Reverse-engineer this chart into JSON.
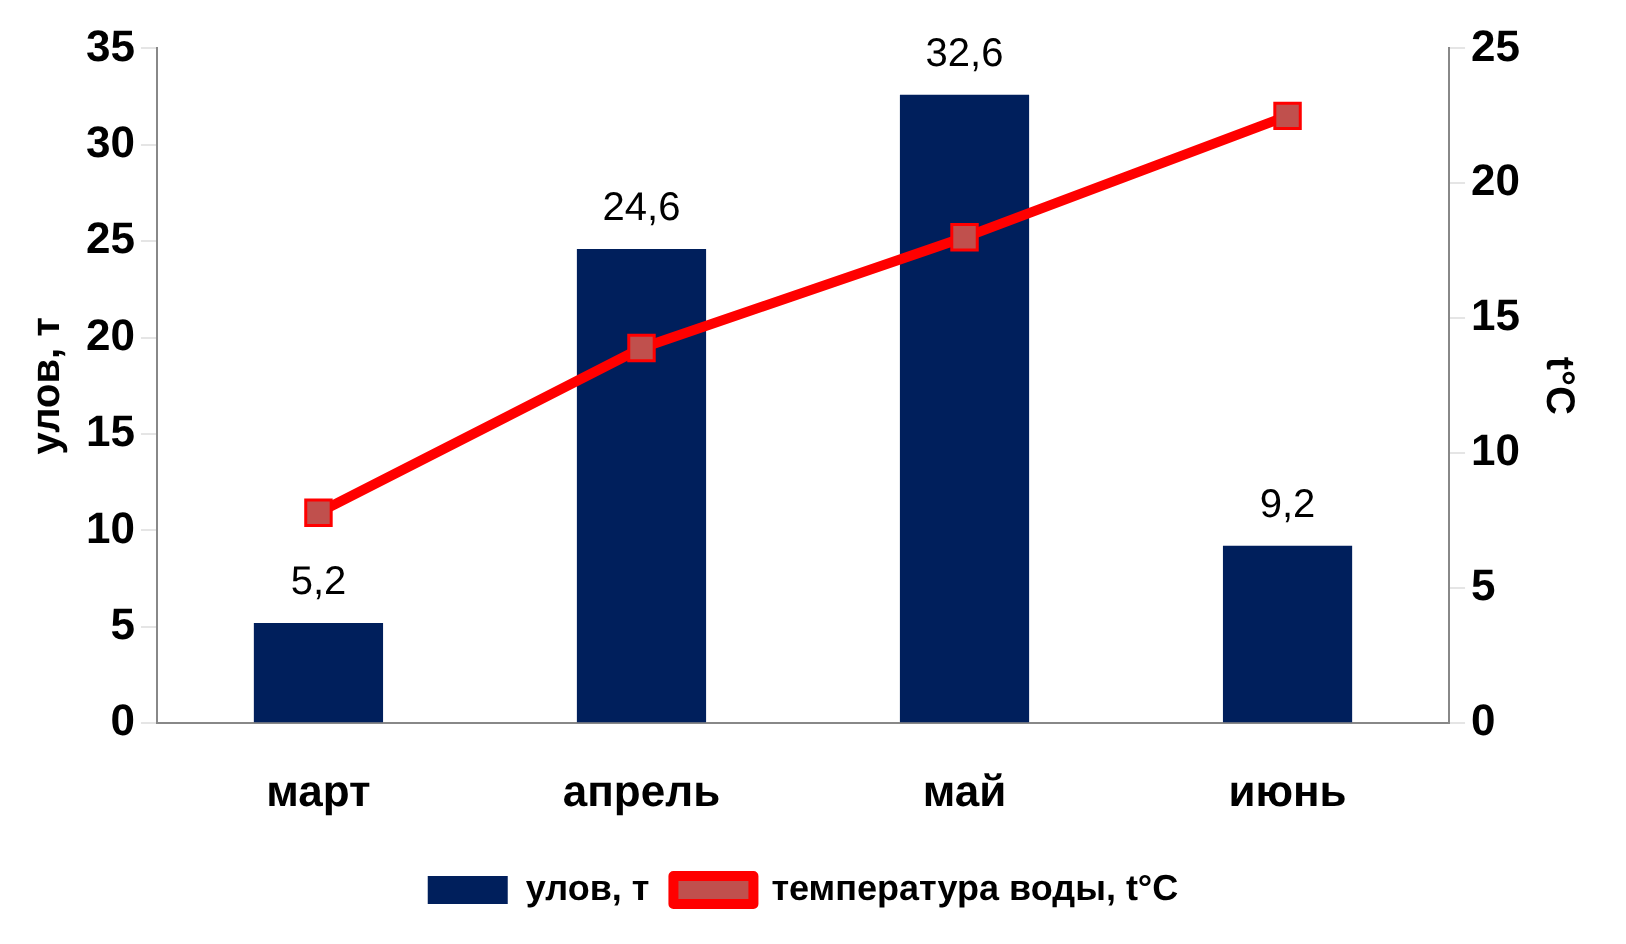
{
  "chart_data": {
    "type": "bar",
    "categories": [
      "март",
      "апрель",
      "май",
      "июнь"
    ],
    "ylabel": "улов, т",
    "y2label": "t°C",
    "ylim": [
      0,
      35
    ],
    "yticks": [
      0,
      5,
      10,
      15,
      20,
      25,
      30,
      35
    ],
    "y2lim": [
      0,
      25
    ],
    "y2ticks": [
      0,
      5,
      10,
      15,
      20,
      25
    ],
    "grid": false,
    "legend": "bottom",
    "marker": "square",
    "line_style": "solid",
    "series": [
      {
        "name": "улов, т",
        "color": "#001f5c",
        "values": [
          5.2,
          24.6,
          32.6,
          9.2
        ],
        "value_labels": [
          "5,2",
          "24,6",
          "32,6",
          "9,2"
        ]
      },
      {
        "name": "температура воды, t°C",
        "type": "line",
        "axis": "y2",
        "color": "#ff0000",
        "values": [
          7.8,
          13.9,
          18,
          22.5
        ]
      }
    ]
  }
}
